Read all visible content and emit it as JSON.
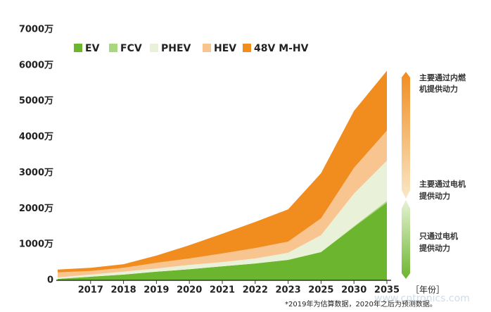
{
  "chart_data": {
    "type": "stacked-area",
    "categories": [
      null,
      "2017",
      "2018",
      "2019",
      "2020",
      "2021",
      "2022",
      "2023",
      "2025",
      "2030",
      "2035"
    ],
    "x_label": "［年份］",
    "series": [
      {
        "name": "EV",
        "color": "#6cb52e",
        "values": [
          40,
          100,
          160,
          240,
          310,
          390,
          470,
          570,
          790,
          1490,
          2170
        ]
      },
      {
        "name": "FCV",
        "color": "#a9d77d",
        "values": [
          0,
          0,
          0,
          0,
          0,
          0,
          0,
          0,
          0,
          20,
          50
        ]
      },
      {
        "name": "PHEV",
        "color": "#e9f2d9",
        "values": [
          40,
          60,
          80,
          90,
          120,
          120,
          140,
          200,
          470,
          910,
          1120
        ]
      },
      {
        "name": "HEV",
        "color": "#f8c48f",
        "values": [
          140,
          100,
          110,
          160,
          180,
          240,
          290,
          310,
          470,
          720,
          840
        ]
      },
      {
        "name": "48V M-HV",
        "color": "#f18c1f",
        "values": [
          80,
          90,
          100,
          200,
          370,
          550,
          730,
          900,
          1260,
          1590,
          1670
        ]
      }
    ],
    "ylim": [
      0,
      7000
    ],
    "yticks": [
      0,
      {
        "value": 1000,
        "label": "1000万"
      },
      {
        "value": 2000,
        "label": "2000万"
      },
      {
        "value": 3000,
        "label": "3000万"
      },
      {
        "value": 4000,
        "label": "4000万"
      },
      {
        "value": 5000,
        "label": "5000万"
      },
      {
        "value": 6000,
        "label": "6000万"
      },
      {
        "value": 7000,
        "label": "7000万"
      }
    ],
    "annotations": [
      {
        "lines": [
          "主要通过内燃",
          "机提供动力"
        ],
        "color": "#f18c1f"
      },
      {
        "lines": [
          "主要通过电机",
          "提供动力"
        ],
        "color": "#e9f2d9"
      },
      {
        "lines": [
          "只通过电机",
          "提供动力"
        ],
        "color": "#6cb52e"
      }
    ],
    "footnote": "*2019年为估算数据，2020年之后为预测数据。",
    "watermark": "www.cntronics.com"
  }
}
